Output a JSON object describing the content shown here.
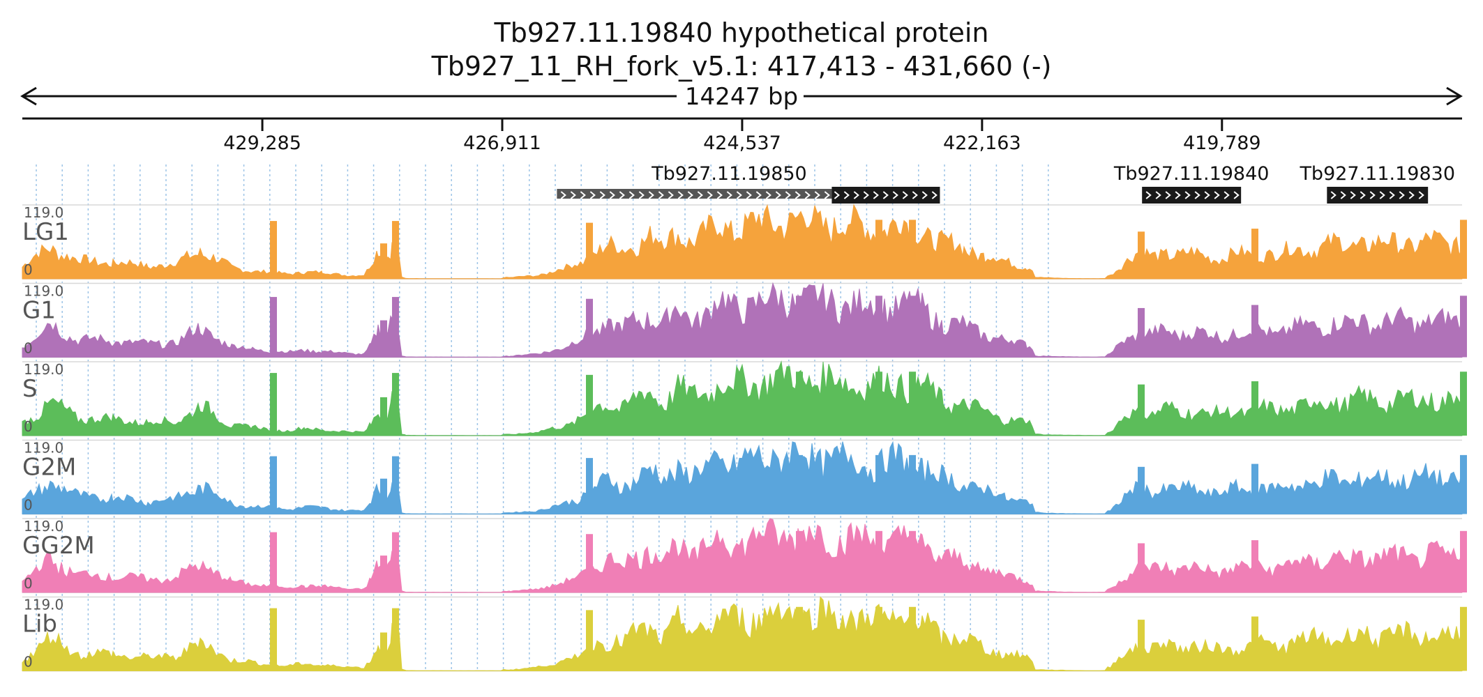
{
  "header": {
    "title_line1": "Tb927.11.19840  hypothetical protein",
    "title_line2": "Tb927_11_RH_fork_v5.1: 417,413 - 431,660 (-)",
    "span_label": "14247 bp"
  },
  "chart_data": {
    "type": "area",
    "title": "Tb927.11.19840  hypothetical protein",
    "subtitle": "Tb927_11_RH_fork_v5.1: 417,413 - 431,660 (-)",
    "contig": "Tb927_11_RH_fork_v5.1",
    "region_start": 417413,
    "region_end": 431660,
    "strand": "-",
    "span_bp": 14247,
    "reversed_axis": true,
    "ticks": [
      {
        "pos": 429285,
        "label": "429,285"
      },
      {
        "pos": 426911,
        "label": "426,911"
      },
      {
        "pos": 424537,
        "label": "424,537"
      },
      {
        "pos": 422163,
        "label": "422,163"
      },
      {
        "pos": 419789,
        "label": "419,789"
      }
    ],
    "genes": [
      {
        "name": "Tb927.11.19850",
        "start": 422580,
        "end": 426370,
        "cds_start": 422580,
        "cds_end": 423650,
        "strand": "-"
      },
      {
        "name": "Tb927.11.19840",
        "start": 419600,
        "end": 420580,
        "cds_start": 419600,
        "cds_end": 420580,
        "strand": "-"
      },
      {
        "name": "Tb927.11.19830",
        "start": 417750,
        "end": 418750,
        "cds_start": 417750,
        "cds_end": 418750,
        "strand": "-"
      }
    ],
    "ymax": 119,
    "ymax_label": "119.0",
    "ymin_label": "0",
    "grid": true,
    "tracks": [
      {
        "name": "LG1",
        "color": "#f5a33c",
        "cap_color": "#f58a1f"
      },
      {
        "name": "G1",
        "color": "#b072b8",
        "cap_color": "#9a4fa3"
      },
      {
        "name": "S",
        "color": "#5cbd5a",
        "cap_color": "#d94040"
      },
      {
        "name": "G2M",
        "color": "#5aa5dc",
        "cap_color": "#d94040"
      },
      {
        "name": "GG2M",
        "color": "#f07fb6",
        "cap_color": "#d94040"
      },
      {
        "name": "Lib",
        "color": "#dbcf3c",
        "cap_color": "#d94040"
      }
    ],
    "profile_points": [
      [
        0,
        20
      ],
      [
        40,
        55
      ],
      [
        80,
        30
      ],
      [
        130,
        28
      ],
      [
        180,
        22
      ],
      [
        220,
        25
      ],
      [
        255,
        48
      ],
      [
        270,
        40
      ],
      [
        300,
        18
      ],
      [
        330,
        14
      ],
      [
        360,
        10
      ],
      [
        380,
        8
      ],
      [
        405,
        12
      ],
      [
        430,
        10
      ],
      [
        450,
        8
      ],
      [
        470,
        6
      ],
      [
        490,
        6
      ],
      [
        500,
        22
      ],
      [
        510,
        45
      ],
      [
        520,
        30
      ],
      [
        530,
        60
      ],
      [
        540,
        50
      ],
      [
        550,
        8
      ],
      [
        565,
        5
      ],
      [
        600,
        4
      ],
      [
        650,
        3
      ],
      [
        700,
        2
      ],
      [
        720,
        4
      ],
      [
        740,
        6
      ],
      [
        760,
        12
      ],
      [
        780,
        18
      ],
      [
        800,
        28
      ],
      [
        820,
        45
      ],
      [
        840,
        55
      ],
      [
        860,
        48
      ],
      [
        880,
        62
      ],
      [
        900,
        72
      ],
      [
        920,
        58
      ],
      [
        940,
        80
      ],
      [
        960,
        65
      ],
      [
        980,
        75
      ],
      [
        1000,
        92
      ],
      [
        1020,
        85
      ],
      [
        1060,
        95
      ],
      [
        1100,
        100
      ],
      [
        1140,
        96
      ],
      [
        1180,
        92
      ],
      [
        1220,
        86
      ],
      [
        1260,
        90
      ],
      [
        1290,
        82
      ],
      [
        1320,
        60
      ],
      [
        1350,
        52
      ],
      [
        1380,
        40
      ],
      [
        1410,
        28
      ],
      [
        1440,
        22
      ],
      [
        1460,
        14
      ],
      [
        1480,
        8
      ],
      [
        1500,
        5
      ],
      [
        1520,
        3
      ],
      [
        1540,
        2
      ],
      [
        1560,
        6
      ],
      [
        1580,
        30
      ],
      [
        1600,
        42
      ],
      [
        1620,
        38
      ],
      [
        1640,
        45
      ],
      [
        1660,
        40
      ],
      [
        1680,
        42
      ],
      [
        1700,
        38
      ],
      [
        1720,
        36
      ],
      [
        1740,
        42
      ],
      [
        1760,
        40
      ],
      [
        1780,
        45
      ],
      [
        1800,
        42
      ],
      [
        1820,
        48
      ],
      [
        1840,
        52
      ],
      [
        1860,
        55
      ],
      [
        1880,
        58
      ],
      [
        1900,
        56
      ],
      [
        1920,
        62
      ],
      [
        1940,
        58
      ],
      [
        1960,
        60
      ],
      [
        1980,
        62
      ],
      [
        2000,
        58
      ],
      [
        2020,
        64
      ],
      [
        2040,
        60
      ],
      [
        2065,
        62
      ],
      [
        2068,
        0
      ]
    ],
    "spikes": [
      {
        "x": 360,
        "h": 98
      },
      {
        "x": 518,
        "h": 60
      },
      {
        "x": 535,
        "h": 98
      },
      {
        "x": 813,
        "h": 95
      },
      {
        "x": 1114,
        "h": 100
      },
      {
        "x": 1228,
        "h": 100
      },
      {
        "x": 1276,
        "h": 100
      },
      {
        "x": 1604,
        "h": 80
      },
      {
        "x": 1767,
        "h": 85
      },
      {
        "x": 2066,
        "h": 100
      }
    ]
  }
}
